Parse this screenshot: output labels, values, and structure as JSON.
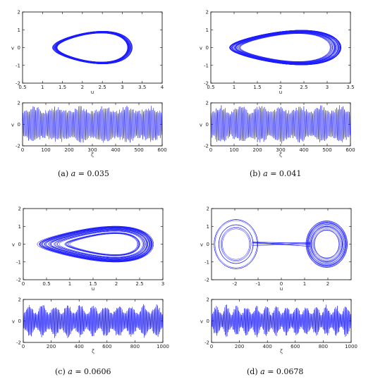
{
  "colors": {
    "trace": "#1a1aff",
    "axis": "#000000"
  },
  "chart_data": [
    {
      "id": "a",
      "type": "line",
      "caption_label": "(a)",
      "caption_var": "a",
      "caption_value": "= 0.035",
      "phase": {
        "xlabel": "u",
        "ylabel": "v",
        "xlim": [
          0.5,
          4
        ],
        "ylim": [
          -2,
          2
        ],
        "xticks": [
          "0.5",
          "1",
          "1.5",
          "2",
          "2.5",
          "3",
          "3.5",
          "4"
        ],
        "yticks": [
          "2",
          "1",
          "0",
          "-1",
          "-2"
        ],
        "orbit": {
          "center_u": 2.25,
          "half_width": 1.0,
          "half_height": 1.15,
          "spread": 0.12,
          "skew": 0.3,
          "cycles": 40
        }
      },
      "series": {
        "xlabel": "ζ",
        "ylabel": "v",
        "xlim": [
          0,
          600
        ],
        "ylim": [
          -2,
          2
        ],
        "xticks": [
          "0",
          "100",
          "200",
          "300",
          "400",
          "500",
          "600"
        ],
        "yticks": [
          "2",
          "0",
          "-2"
        ],
        "amplitude": 1.6,
        "envelope": 0.25,
        "periods": 110,
        "env_periods": 6
      }
    },
    {
      "id": "b",
      "type": "line",
      "caption_label": "(b)",
      "caption_var": "a",
      "caption_value": "= 0.041",
      "phase": {
        "xlabel": "u",
        "ylabel": "v",
        "xlim": [
          0.5,
          3.5
        ],
        "ylim": [
          -2,
          2
        ],
        "xticks": [
          "0.5",
          "1",
          "1.5",
          "2",
          "2.5",
          "3",
          "3.5"
        ],
        "yticks": [
          "2",
          "1",
          "0",
          "-1",
          "-2"
        ],
        "orbit": {
          "center_u": 2.1,
          "half_width": 1.2,
          "half_height": 1.25,
          "spread": 0.2,
          "skew": 0.35,
          "cycles": 40
        }
      },
      "series": {
        "xlabel": "ζ",
        "ylabel": "v",
        "xlim": [
          0,
          600
        ],
        "ylim": [
          -2,
          2
        ],
        "xticks": [
          "0",
          "100",
          "200",
          "300",
          "400",
          "500",
          "600"
        ],
        "yticks": [
          "2",
          "0",
          "-2"
        ],
        "amplitude": 1.65,
        "envelope": 0.3,
        "periods": 110,
        "env_periods": 7
      }
    },
    {
      "id": "c",
      "type": "line",
      "caption_label": "(c)",
      "caption_var": "a",
      "caption_value": "= 0.0606",
      "phase": {
        "xlabel": "u",
        "ylabel": "v",
        "xlim": [
          0,
          3
        ],
        "ylim": [
          -2,
          2
        ],
        "xticks": [
          "0",
          "0.5",
          "1",
          "1.5",
          "2",
          "2.5",
          "3"
        ],
        "yticks": [
          "2",
          "1",
          "0",
          "-1",
          "-2"
        ],
        "orbit": {
          "center_u": 1.55,
          "half_width": 1.25,
          "half_height": 1.35,
          "spread": 0.45,
          "skew": 0.45,
          "cycles": 45,
          "inner_center_u": 1.9
        }
      },
      "series": {
        "xlabel": "ζ",
        "ylabel": "v",
        "xlim": [
          0,
          1000
        ],
        "ylim": [
          -2,
          2
        ],
        "xticks": [
          "0",
          "200",
          "400",
          "600",
          "800",
          "1000"
        ],
        "yticks": [
          "2",
          "0",
          "-2"
        ],
        "amplitude": 1.45,
        "envelope": 0.5,
        "periods": 150,
        "env_periods": 11
      }
    },
    {
      "id": "d",
      "type": "line",
      "caption_label": "(d)",
      "caption_var": "a",
      "caption_value": "= 0.0678",
      "phase": {
        "xlabel": "u",
        "ylabel": "v",
        "xlim": [
          -3,
          3
        ],
        "ylim": [
          -2,
          2
        ],
        "xticks": [
          "-2",
          "-1",
          "0",
          "1",
          "2"
        ],
        "yticks": [
          "2",
          "1",
          "0",
          "-1",
          "-2"
        ],
        "orbit": {
          "type": "double",
          "lobe_centers": [
            -1.95,
            1.95
          ],
          "half_width": 0.95,
          "half_height": 1.4,
          "spread": 0.45,
          "cycles": 30
        }
      },
      "series": {
        "xlabel": "ζ",
        "ylabel": "v",
        "xlim": [
          0,
          1000
        ],
        "ylim": [
          -2,
          2
        ],
        "xticks": [
          "0",
          "200",
          "400",
          "600",
          "800",
          "1000"
        ],
        "yticks": [
          "2",
          "0",
          "-2"
        ],
        "amplitude": 1.4,
        "envelope": 0.55,
        "periods": 150,
        "env_periods": 14
      }
    }
  ]
}
